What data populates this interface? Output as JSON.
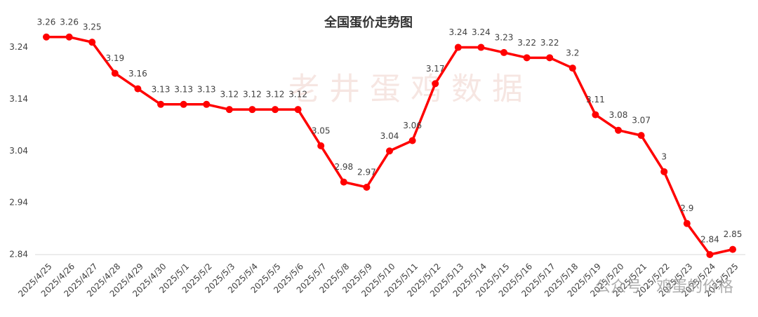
{
  "chart_data": {
    "type": "line",
    "title": "全国蛋价走势图",
    "categories": [
      "2025/4/25",
      "2025/4/26",
      "2025/4/27",
      "2025/4/28",
      "2025/4/29",
      "2025/4/30",
      "2025/5/1",
      "2025/5/2",
      "2025/5/3",
      "2025/5/4",
      "2025/5/5",
      "2025/5/6",
      "2025/5/7",
      "2025/5/8",
      "2025/5/9",
      "2025/5/10",
      "2025/5/11",
      "2025/5/12",
      "2025/5/13",
      "2025/5/14",
      "2025/5/15",
      "2025/5/16",
      "2025/5/17",
      "2025/5/18",
      "2025/5/19",
      "2025/5/20",
      "2025/5/21",
      "2025/5/22",
      "2025/5/23",
      "2025/5/24",
      "2025/5/25"
    ],
    "values": [
      3.26,
      3.26,
      3.25,
      3.19,
      3.16,
      3.13,
      3.13,
      3.13,
      3.12,
      3.12,
      3.12,
      3.12,
      3.05,
      2.98,
      2.97,
      3.04,
      3.06,
      3.17,
      3.24,
      3.24,
      3.23,
      3.22,
      3.22,
      3.2,
      3.11,
      3.08,
      3.07,
      3,
      2.9,
      2.84,
      2.85
    ],
    "color": "#ff0000",
    "ylim": [
      2.84,
      3.28
    ],
    "yticks": [
      2.84,
      2.94,
      3.04,
      3.14,
      3.24
    ],
    "grid": false,
    "watermarks": [
      "老井蛋鸡数据",
      "公众号 · 鸡蛋的价格"
    ]
  }
}
